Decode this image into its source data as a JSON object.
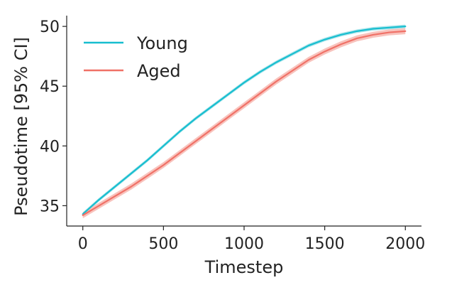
{
  "chart_data": {
    "type": "line",
    "xlabel": "Timestep",
    "ylabel": "Pseudotime [95% CI]",
    "xlim": [
      -100,
      2100
    ],
    "ylim": [
      33.3,
      50.9
    ],
    "xticks": [
      0,
      500,
      1000,
      1500,
      2000
    ],
    "yticks": [
      35,
      40,
      45,
      50
    ],
    "xtick_labels": [
      "0",
      "500",
      "1000",
      "1500",
      "2000"
    ],
    "ytick_labels": [
      "35",
      "40",
      "45",
      "50"
    ],
    "grid": false,
    "legend_position": "top-left",
    "x": [
      0,
      100,
      200,
      300,
      400,
      500,
      600,
      700,
      800,
      900,
      1000,
      1100,
      1200,
      1300,
      1400,
      1500,
      1600,
      1700,
      1800,
      1900,
      2000
    ],
    "series": [
      {
        "name": "Young",
        "color": "#17becf",
        "band_color": "#9fe0e8",
        "values": [
          34.3,
          35.5,
          36.6,
          37.7,
          38.8,
          40.0,
          41.2,
          42.3,
          43.3,
          44.3,
          45.3,
          46.2,
          47.0,
          47.7,
          48.4,
          48.9,
          49.3,
          49.6,
          49.8,
          49.9,
          50.0
        ],
        "ci": 0.15
      },
      {
        "name": "Aged",
        "color": "#f07167",
        "band_color": "#f7b8b2",
        "values": [
          34.2,
          35.0,
          35.8,
          36.6,
          37.5,
          38.4,
          39.4,
          40.4,
          41.4,
          42.4,
          43.4,
          44.4,
          45.4,
          46.3,
          47.2,
          47.9,
          48.5,
          49.0,
          49.3,
          49.5,
          49.6
        ],
        "ci": 0.25
      }
    ]
  }
}
